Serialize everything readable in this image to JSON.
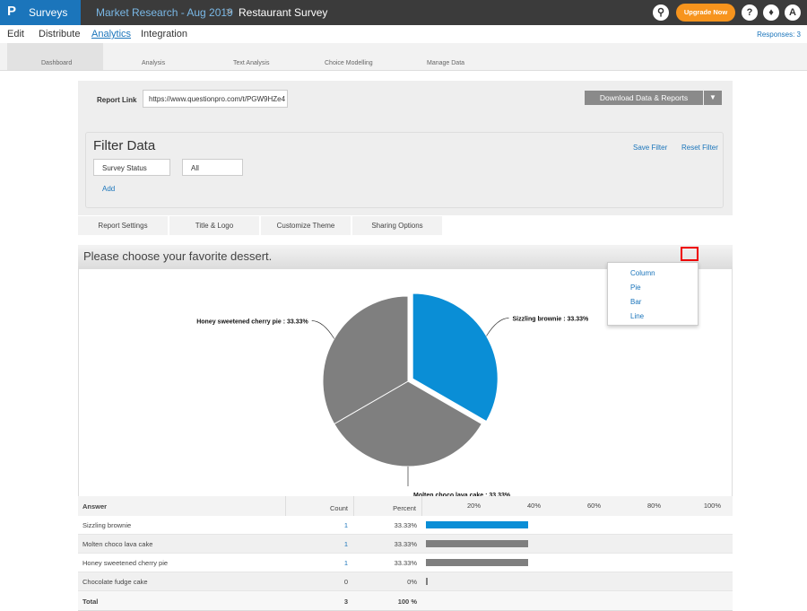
{
  "topbar": {
    "app": "Surveys",
    "breadcrumb": [
      "Market Research - Aug 2019",
      "Restaurant Survey"
    ],
    "upgrade": "Upgrade Now",
    "avatar": "A"
  },
  "menu": {
    "items": [
      "Edit",
      "Distribute",
      "Analytics",
      "Integration"
    ],
    "responses": "Responses: 3"
  },
  "toolbar": [
    "Dashboard",
    "Analysis",
    "Text Analysis",
    "Choice Modelling",
    "Manage Data"
  ],
  "report": {
    "link_label": "Report Link",
    "link": "https://www.questionpro.com/t/PGW9HZe4",
    "download": "Download Data & Reports"
  },
  "filter": {
    "title": "Filter Data",
    "save": "Save Filter",
    "reset": "Reset Filter",
    "field": "Survey Status",
    "value": "All",
    "add": "Add"
  },
  "tabs": [
    "Report Settings",
    "Title & Logo",
    "Customize Theme",
    "Sharing Options"
  ],
  "question": "Please choose your favorite dessert.",
  "chart_menu": [
    "Column",
    "Pie",
    "Bar",
    "Line"
  ],
  "chart_data": {
    "type": "pie",
    "categories": [
      "Sizzling brownie",
      "Molten choco lava cake",
      "Honey sweetened cherry pie"
    ],
    "values": [
      33.33,
      33.33,
      33.33
    ],
    "value_labels": [
      "Sizzling brownie : 33.33%",
      "Molten choco lava cake : 33.33%",
      "Honey sweetened cherry pie : 33.33%"
    ],
    "colors": [
      "#0a8ed6",
      "#7f7f7f",
      "#7f7f7f"
    ]
  },
  "table": {
    "headers": [
      "Answer",
      "Count",
      "Percent"
    ],
    "xlim": [
      0,
      100
    ],
    "xticks": [
      {
        "value": 20,
        "label": "20%"
      },
      {
        "value": 40,
        "label": "40%"
      },
      {
        "value": 60,
        "label": "60%"
      },
      {
        "value": 80,
        "label": "80%"
      },
      {
        "value": 100,
        "label": "100%"
      }
    ],
    "rows": [
      {
        "answer": "Sizzling brownie",
        "count": 1,
        "percent": "33.33%",
        "share": 33.33,
        "color": "#0a8ed6"
      },
      {
        "answer": "Molten choco lava cake",
        "count": 1,
        "percent": "33.33%",
        "share": 33.33,
        "color": "#7f7f7f"
      },
      {
        "answer": "Honey sweetened cherry pie",
        "count": 1,
        "percent": "33.33%",
        "share": 33.33,
        "color": "#7f7f7f"
      },
      {
        "answer": "Chocolate fudge cake",
        "count": 0,
        "percent": "0%",
        "share": 0,
        "color": "#7f7f7f"
      }
    ],
    "total": {
      "label": "Total",
      "count": 3,
      "percent": "100 %"
    }
  }
}
